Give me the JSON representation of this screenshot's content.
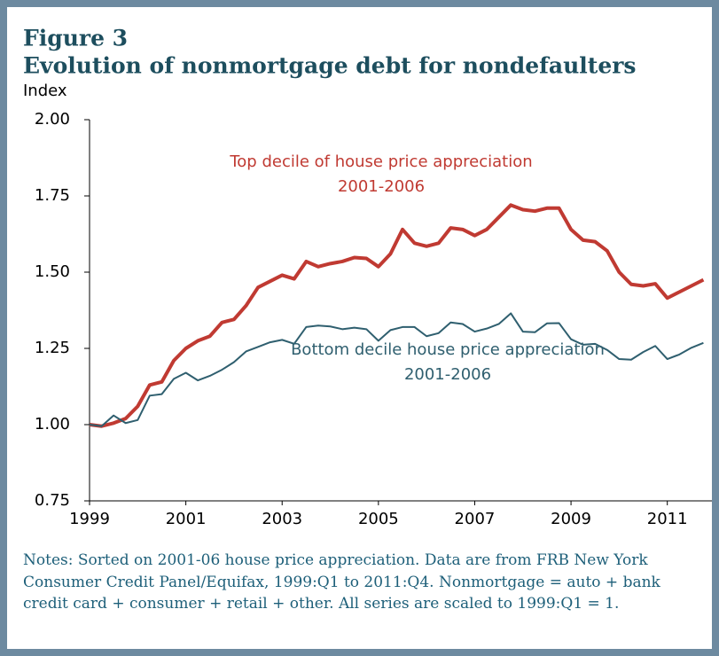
{
  "chart_data": {
    "type": "line",
    "title": "Figure 3",
    "subtitle": "Evolution of nonmortgage debt for nondefaulters",
    "y_label": "Index",
    "x": [
      1999,
      1999.25,
      1999.5,
      1999.75,
      2000,
      2000.25,
      2000.5,
      2000.75,
      2001,
      2001.25,
      2001.5,
      2001.75,
      2002,
      2002.25,
      2002.5,
      2002.75,
      2003,
      2003.25,
      2003.5,
      2003.75,
      2004,
      2004.25,
      2004.5,
      2004.75,
      2005,
      2005.25,
      2005.5,
      2005.75,
      2006,
      2006.25,
      2006.5,
      2006.75,
      2007,
      2007.25,
      2007.5,
      2007.75,
      2008,
      2008.25,
      2008.5,
      2008.75,
      2009,
      2009.25,
      2009.5,
      2009.75,
      2010,
      2010.25,
      2010.5,
      2010.75,
      2011,
      2011.25,
      2011.5,
      2011.75
    ],
    "series": [
      {
        "name": "Top decile",
        "color": "#c03a32",
        "width": 4,
        "values": [
          1.0,
          0.995,
          1.005,
          1.02,
          1.06,
          1.13,
          1.14,
          1.21,
          1.25,
          1.275,
          1.29,
          1.335,
          1.345,
          1.39,
          1.45,
          1.47,
          1.49,
          1.478,
          1.535,
          1.518,
          1.528,
          1.535,
          1.548,
          1.545,
          1.518,
          1.56,
          1.64,
          1.595,
          1.585,
          1.595,
          1.645,
          1.64,
          1.62,
          1.64,
          1.68,
          1.72,
          1.705,
          1.7,
          1.71,
          1.71,
          1.64,
          1.605,
          1.6,
          1.57,
          1.5,
          1.46,
          1.455,
          1.462,
          1.415,
          1.435,
          1.455,
          1.475
        ]
      },
      {
        "name": "Bottom decile",
        "color": "#2f5f6f",
        "width": 2,
        "values": [
          1.0,
          0.995,
          1.03,
          1.005,
          1.015,
          1.095,
          1.1,
          1.15,
          1.17,
          1.145,
          1.16,
          1.18,
          1.205,
          1.24,
          1.255,
          1.27,
          1.278,
          1.265,
          1.32,
          1.325,
          1.322,
          1.313,
          1.318,
          1.313,
          1.275,
          1.31,
          1.32,
          1.32,
          1.29,
          1.3,
          1.335,
          1.33,
          1.305,
          1.315,
          1.33,
          1.365,
          1.305,
          1.303,
          1.332,
          1.333,
          1.28,
          1.262,
          1.265,
          1.245,
          1.215,
          1.213,
          1.238,
          1.258,
          1.215,
          1.23,
          1.252,
          1.268
        ]
      }
    ],
    "annotations": [
      "Top decile of house price appreciation",
      "2001-2006",
      "Bottom decile house price appreciation",
      "2001-2006"
    ],
    "xlim": [
      1999,
      2012
    ],
    "xticks": [
      1999,
      2001,
      2003,
      2005,
      2007,
      2009,
      2011
    ],
    "ylim": [
      0.75,
      2
    ],
    "yticks": [
      {
        "value": 0.75,
        "label": "0.75"
      },
      {
        "value": 1,
        "label": "1.00"
      },
      {
        "value": 1.25,
        "label": "1.25"
      },
      {
        "value": 1.5,
        "label": "1.50"
      },
      {
        "value": 1.75,
        "label": "1.75"
      },
      {
        "value": 2,
        "label": "2.00"
      }
    ],
    "grid": false,
    "notes": "Notes: Sorted on 2001-06 house price appreciation. Data are from FRB New York Consumer Credit Panel/Equifax, 1999:Q1 to 2011:Q4. Nonmortgage = auto + bank credit card + consumer + retail + other. All series are scaled to 1999:Q1 = 1."
  }
}
